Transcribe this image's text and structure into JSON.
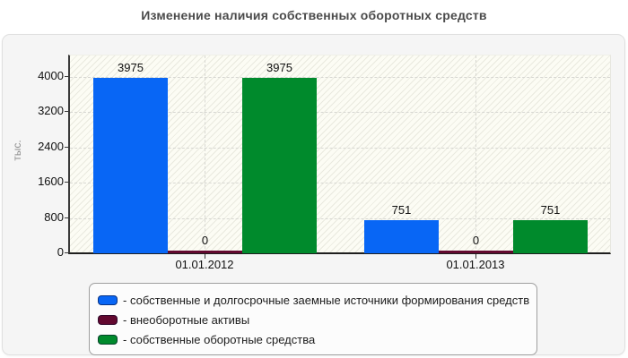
{
  "title": "Изменение наличия собственных оборотных средств",
  "chart_data": {
    "type": "bar",
    "title": "Изменение наличия собственных оборотных средств",
    "categories": [
      "01.01.2012",
      "01.01.2013"
    ],
    "series": [
      {
        "name": "собственные и долгосрочные заемные источники формирования средств",
        "color": "#0866f5",
        "values": [
          3975,
          751
        ]
      },
      {
        "name": "внеоборотные активы",
        "color": "#62082f",
        "values": [
          0,
          0
        ]
      },
      {
        "name": "собственные оборотные средства",
        "color": "#008a2c",
        "values": [
          3975,
          751
        ]
      }
    ],
    "ylabel": "тыс.",
    "yticks": [
      0,
      800,
      1600,
      2400,
      3200,
      4000
    ],
    "ylim": [
      0,
      4480
    ],
    "grid": "dashed",
    "legend_position": "bottom",
    "legend_prefix": "- "
  }
}
